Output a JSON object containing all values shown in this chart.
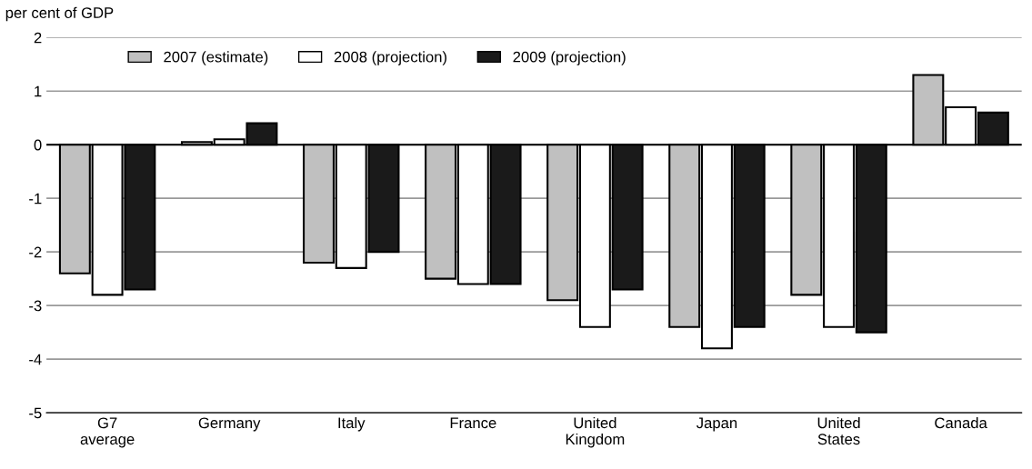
{
  "chart_data": {
    "type": "bar",
    "ylabel": "per cent of GDP",
    "categories": [
      "G7\naverage",
      "Germany",
      "Italy",
      "France",
      "United\nKingdom",
      "Japan",
      "United\nStates",
      "Canada"
    ],
    "series": [
      {
        "name": "2007 (estimate)",
        "color": "#c0c0c0",
        "values": [
          -2.4,
          0.05,
          -2.2,
          -2.5,
          -2.9,
          -3.4,
          -2.8,
          1.3
        ]
      },
      {
        "name": "2008 (projection)",
        "color": "#ffffff",
        "values": [
          -2.8,
          0.1,
          -2.3,
          -2.6,
          -3.4,
          -3.8,
          -3.4,
          0.7
        ]
      },
      {
        "name": "2009 (projection)",
        "color": "#1a1a1a",
        "values": [
          -2.7,
          0.4,
          -2.0,
          -2.6,
          -2.7,
          -3.4,
          -3.5,
          0.6
        ]
      }
    ],
    "ylim": [
      -5,
      2
    ],
    "yticks": [
      -5,
      -4,
      -3,
      -2,
      -1,
      0,
      1,
      2
    ],
    "grid": "y",
    "legend": "top left"
  }
}
